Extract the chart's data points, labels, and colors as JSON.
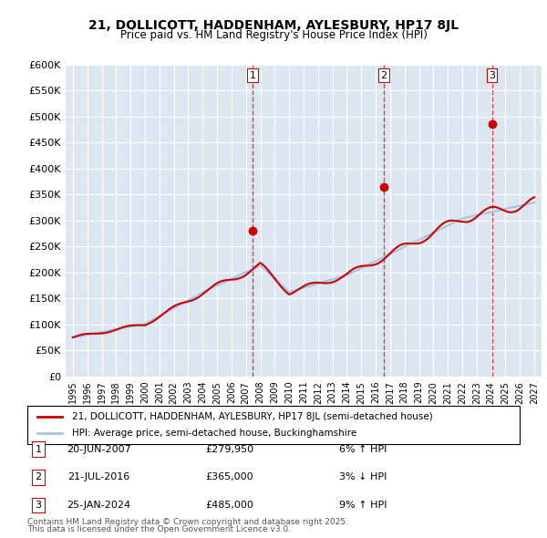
{
  "title": "21, DOLLICOTT, HADDENHAM, AYLESBURY, HP17 8JL",
  "subtitle": "Price paid vs. HM Land Registry's House Price Index (HPI)",
  "background_color": "#ffffff",
  "plot_bg_color": "#dce6f1",
  "grid_color": "#ffffff",
  "ylabel": "",
  "xlabel": "",
  "ylim": [
    0,
    600000
  ],
  "ytick_labels": [
    "£0",
    "£50K",
    "£100K",
    "£150K",
    "£200K",
    "£250K",
    "£300K",
    "£350K",
    "£400K",
    "£450K",
    "£500K",
    "£550K",
    "£600K"
  ],
  "ytick_values": [
    0,
    50000,
    100000,
    150000,
    200000,
    250000,
    300000,
    350000,
    400000,
    450000,
    500000,
    550000,
    600000
  ],
  "hpi_color": "#a8c4e0",
  "price_color": "#cc0000",
  "vline_color": "#cc0000",
  "sale_marker_color": "#cc0000",
  "transactions": [
    {
      "label": "1",
      "date_num": 2007.47,
      "price": 279950,
      "pct": "6%",
      "dir": "↑",
      "date_str": "20-JUN-2007"
    },
    {
      "label": "2",
      "date_num": 2016.55,
      "price": 365000,
      "pct": "3%",
      "dir": "↓",
      "date_str": "21-JUL-2016"
    },
    {
      "label": "3",
      "date_num": 2024.07,
      "price": 485000,
      "pct": "9%",
      "dir": "↑",
      "date_str": "25-JAN-2024"
    }
  ],
  "legend_entry1": "21, DOLLICOTT, HADDENHAM, AYLESBURY, HP17 8JL (semi-detached house)",
  "legend_entry2": "HPI: Average price, semi-detached house, Buckinghamshire",
  "footer1": "Contains HM Land Registry data © Crown copyright and database right 2025.",
  "footer2": "This data is licensed under the Open Government Licence v3.0."
}
